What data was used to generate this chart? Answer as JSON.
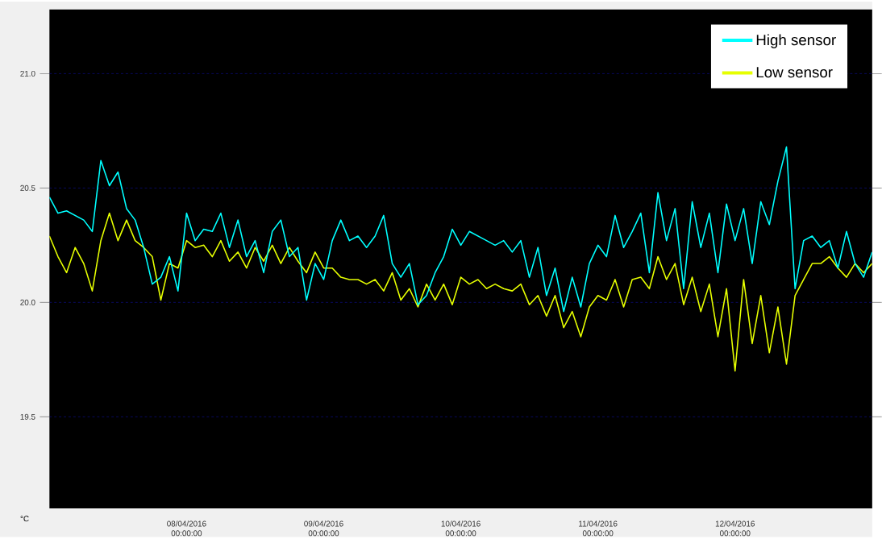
{
  "chart_data": {
    "type": "line",
    "ylabel": "°C",
    "x": [
      "2016-04-07T00:00",
      "2016-04-07T01:30",
      "2016-04-07T03:00",
      "2016-04-07T04:30",
      "2016-04-07T06:00",
      "2016-04-07T07:30",
      "2016-04-07T09:00",
      "2016-04-07T10:30",
      "2016-04-07T12:00",
      "2016-04-07T13:30",
      "2016-04-07T15:00",
      "2016-04-07T16:30",
      "2016-04-07T18:00",
      "2016-04-07T19:30",
      "2016-04-07T21:00",
      "2016-04-07T22:30",
      "2016-04-08T00:00",
      "2016-04-08T01:30",
      "2016-04-08T03:00",
      "2016-04-08T04:30",
      "2016-04-08T06:00",
      "2016-04-08T07:30",
      "2016-04-08T09:00",
      "2016-04-08T10:30",
      "2016-04-08T12:00",
      "2016-04-08T13:30",
      "2016-04-08T15:00",
      "2016-04-08T16:30",
      "2016-04-08T18:00",
      "2016-04-08T19:30",
      "2016-04-08T21:00",
      "2016-04-08T22:30",
      "2016-04-09T00:00",
      "2016-04-09T01:30",
      "2016-04-09T03:00",
      "2016-04-09T04:30",
      "2016-04-09T06:00",
      "2016-04-09T07:30",
      "2016-04-09T09:00",
      "2016-04-09T10:30",
      "2016-04-09T12:00",
      "2016-04-09T13:30",
      "2016-04-09T15:00",
      "2016-04-09T16:30",
      "2016-04-09T18:00",
      "2016-04-09T19:30",
      "2016-04-09T21:00",
      "2016-04-09T22:30",
      "2016-04-10T00:00",
      "2016-04-10T01:30",
      "2016-04-10T03:00",
      "2016-04-10T04:30",
      "2016-04-10T06:00",
      "2016-04-10T07:30",
      "2016-04-10T09:00",
      "2016-04-10T10:30",
      "2016-04-10T12:00",
      "2016-04-10T13:30",
      "2016-04-10T15:00",
      "2016-04-10T16:30",
      "2016-04-10T18:00",
      "2016-04-10T19:30",
      "2016-04-10T21:00",
      "2016-04-10T22:30",
      "2016-04-11T00:00",
      "2016-04-11T01:30",
      "2016-04-11T03:00",
      "2016-04-11T04:30",
      "2016-04-11T06:00",
      "2016-04-11T07:30",
      "2016-04-11T09:00",
      "2016-04-11T10:30",
      "2016-04-11T12:00",
      "2016-04-11T13:30",
      "2016-04-11T15:00",
      "2016-04-11T16:30",
      "2016-04-11T18:00",
      "2016-04-11T19:30",
      "2016-04-11T21:00",
      "2016-04-11T22:30",
      "2016-04-12T00:00",
      "2016-04-12T01:30",
      "2016-04-12T03:00",
      "2016-04-12T04:30",
      "2016-04-12T06:00",
      "2016-04-12T07:30",
      "2016-04-12T09:00",
      "2016-04-12T10:30",
      "2016-04-12T12:00",
      "2016-04-12T13:30",
      "2016-04-12T15:00",
      "2016-04-12T16:30",
      "2016-04-12T18:00",
      "2016-04-12T19:30",
      "2016-04-12T21:00",
      "2016-04-12T22:30",
      "2016-04-13T00:00"
    ],
    "series": [
      {
        "name": "High sensor",
        "color": "#00ffff",
        "values": [
          20.46,
          20.39,
          20.4,
          20.38,
          20.36,
          20.31,
          20.62,
          20.51,
          20.57,
          20.41,
          20.36,
          20.24,
          20.08,
          20.11,
          20.2,
          20.05,
          20.39,
          20.27,
          20.32,
          20.31,
          20.39,
          20.24,
          20.36,
          20.2,
          20.27,
          20.13,
          20.31,
          20.36,
          20.2,
          20.24,
          20.01,
          20.17,
          20.1,
          20.27,
          20.36,
          20.27,
          20.29,
          20.24,
          20.29,
          20.38,
          20.17,
          20.11,
          20.17,
          19.99,
          20.03,
          20.13,
          20.2,
          20.32,
          20.25,
          20.31,
          20.29,
          20.27,
          20.25,
          20.27,
          20.22,
          20.27,
          20.11,
          20.24,
          20.03,
          20.15,
          19.96,
          20.11,
          19.98,
          20.17,
          20.25,
          20.2,
          20.38,
          20.24,
          20.31,
          20.39,
          20.13,
          20.48,
          20.27,
          20.41,
          20.06,
          20.44,
          20.24,
          20.39,
          20.13,
          20.43,
          20.27,
          20.41,
          20.17,
          20.44,
          20.34,
          20.53,
          20.68,
          20.06,
          20.27,
          20.29,
          20.24,
          20.27,
          20.15,
          20.31,
          20.17,
          20.11,
          20.22
        ]
      },
      {
        "name": "Low sensor",
        "color": "#e6ff00",
        "values": [
          20.29,
          20.2,
          20.13,
          20.24,
          20.17,
          20.05,
          20.27,
          20.39,
          20.27,
          20.36,
          20.27,
          20.24,
          20.2,
          20.01,
          20.17,
          20.15,
          20.27,
          20.24,
          20.25,
          20.2,
          20.27,
          20.18,
          20.22,
          20.15,
          20.24,
          20.18,
          20.25,
          20.17,
          20.24,
          20.18,
          20.13,
          20.22,
          20.15,
          20.15,
          20.11,
          20.1,
          20.1,
          20.08,
          20.1,
          20.05,
          20.13,
          20.01,
          20.06,
          19.98,
          20.08,
          20.01,
          20.08,
          19.99,
          20.11,
          20.08,
          20.1,
          20.06,
          20.08,
          20.06,
          20.05,
          20.08,
          19.99,
          20.03,
          19.94,
          20.03,
          19.89,
          19.96,
          19.85,
          19.98,
          20.03,
          20.01,
          20.1,
          19.98,
          20.1,
          20.11,
          20.06,
          20.2,
          20.1,
          20.17,
          19.99,
          20.11,
          19.96,
          20.08,
          19.85,
          20.06,
          19.7,
          20.1,
          19.82,
          20.03,
          19.78,
          19.98,
          19.73,
          20.03,
          20.1,
          20.17,
          20.17,
          20.2,
          20.15,
          20.11,
          20.17,
          20.13,
          20.17
        ]
      }
    ],
    "xlim": [
      "2016-04-07T00:00",
      "2016-04-13T00:00"
    ],
    "xticks": [
      {
        "value": "2016-04-08T00:00",
        "label": "08/04/2016 00:00:00"
      },
      {
        "value": "2016-04-09T00:00",
        "label": "09/04/2016 00:00:00"
      },
      {
        "value": "2016-04-10T00:00",
        "label": "10/04/2016 00:00:00"
      },
      {
        "value": "2016-04-11T00:00",
        "label": "11/04/2016 00:00:00"
      },
      {
        "value": "2016-04-12T00:00",
        "label": "12/04/2016 00:00:00"
      }
    ],
    "ylim": [
      19.1,
      21.28
    ],
    "yticks": [
      {
        "value": 19.5,
        "label": "19.5"
      },
      {
        "value": 20.0,
        "label": "20.0"
      },
      {
        "value": 20.5,
        "label": "20.5"
      },
      {
        "value": 21.0,
        "label": "21.0"
      }
    ],
    "grid": "y",
    "legend": "top right",
    "line_style": "solid",
    "marker": "none"
  }
}
